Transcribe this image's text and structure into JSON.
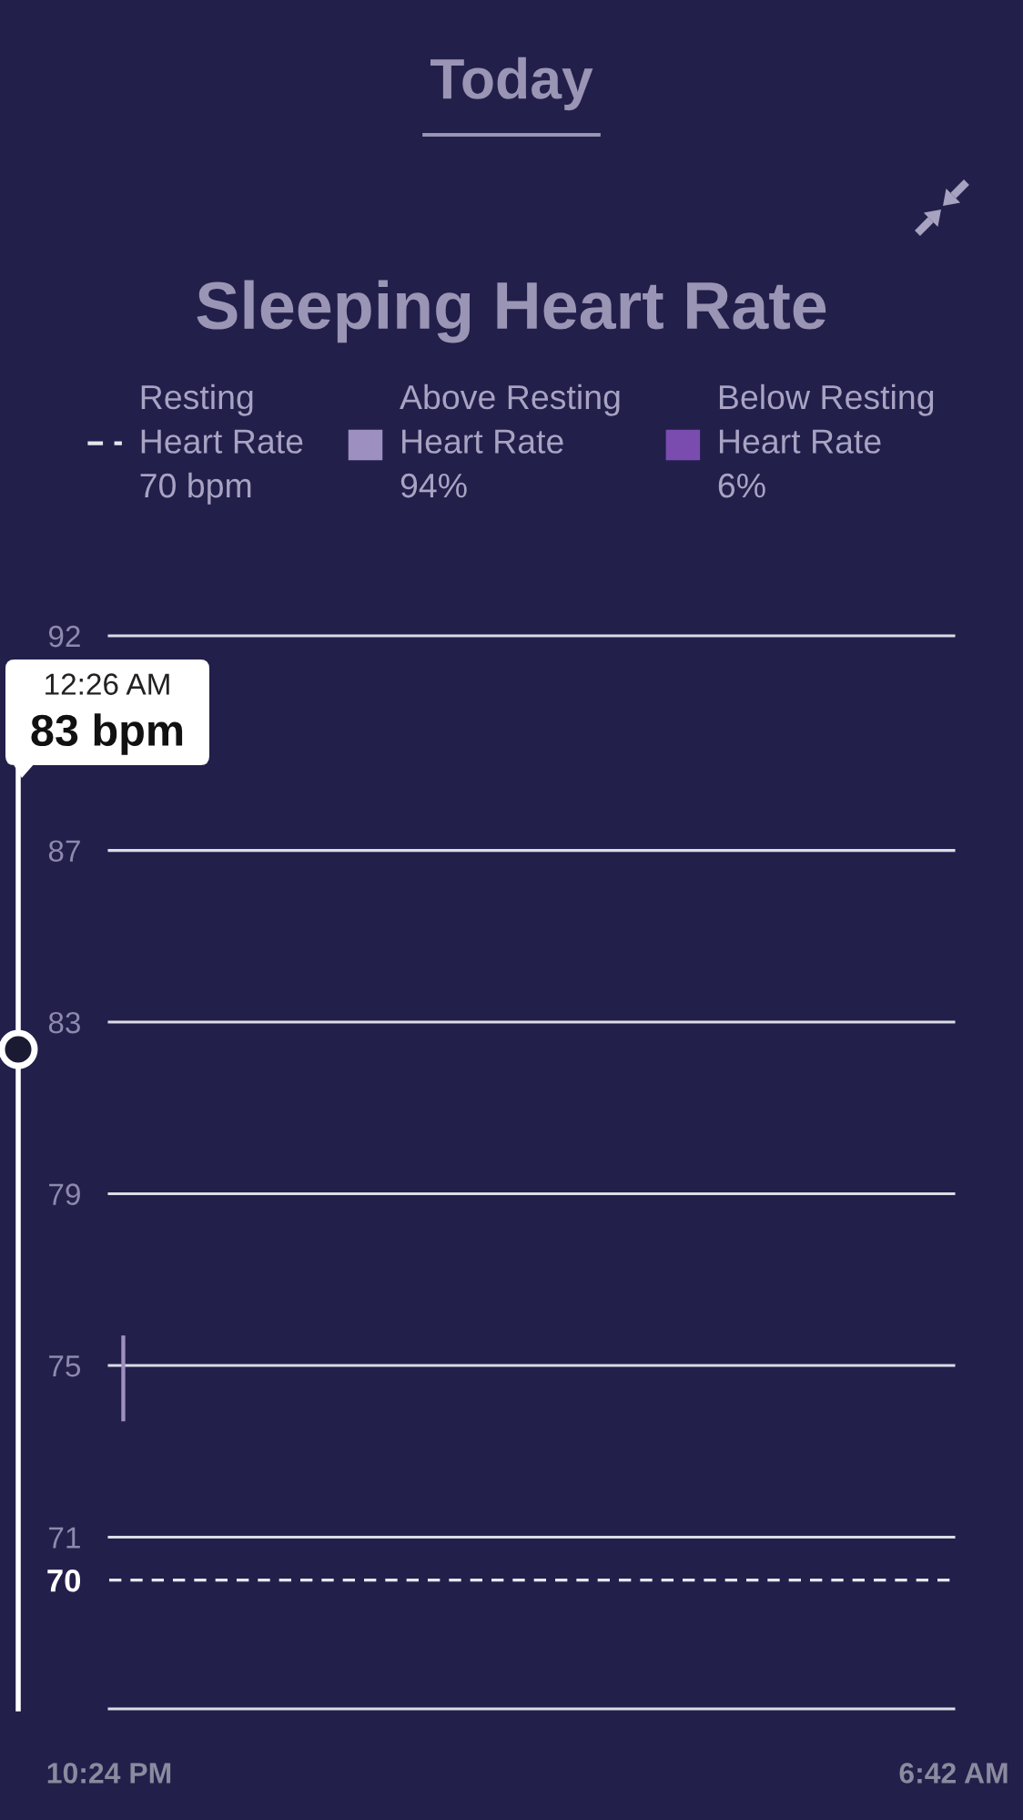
{
  "chart_data": {
    "type": "bar",
    "title": "Sleeping Heart Rate",
    "subtitle": "Today",
    "categories": [
      "10:24 PM",
      null,
      null,
      null,
      null,
      null,
      null,
      null,
      null,
      null,
      null,
      null,
      null,
      null,
      null,
      null,
      null,
      null,
      null,
      null,
      null,
      null,
      null,
      null,
      null,
      null,
      null,
      null,
      null,
      null,
      null,
      null,
      null,
      null,
      null,
      null,
      null,
      null,
      null,
      null,
      null,
      null,
      null,
      null,
      null,
      null,
      null,
      null,
      null,
      null,
      null,
      null,
      null,
      null,
      null,
      null,
      null,
      null,
      null,
      null,
      "6:42 AM"
    ],
    "series": [
      {
        "name": "Above Resting\nHeart Rate\n94%",
        "color": "#9d90c0",
        "values": [
          null,
          2.0,
          null,
          null,
          null,
          null,
          null,
          null,
          null,
          null,
          null,
          null,
          null,
          null,
          null,
          null,
          null,
          null,
          null,
          null,
          null,
          null,
          null,
          null,
          null,
          null,
          null,
          null,
          null,
          null,
          null,
          null,
          null,
          null,
          null,
          null,
          null,
          null,
          null,
          null,
          null,
          null,
          null,
          null,
          null,
          null,
          null,
          null,
          null,
          null,
          null,
          null,
          null,
          null,
          null,
          null,
          null,
          null,
          null,
          null,
          null
        ],
        "base": [
          null,
          73.7,
          null,
          null,
          null,
          null,
          null,
          null,
          null,
          null,
          null,
          null,
          null,
          null,
          null,
          null,
          null,
          null,
          null,
          null,
          null,
          null,
          null,
          null,
          null,
          null,
          null,
          null,
          null,
          null,
          null,
          null,
          null,
          null,
          null,
          null,
          null,
          null,
          null,
          null,
          null,
          null,
          null,
          null,
          null,
          null,
          null,
          null,
          null,
          null,
          null,
          null,
          null,
          null,
          null,
          null,
          null,
          null,
          null,
          null,
          null
        ]
      },
      {
        "name": "Below Resting\nHeart Rate\n6%",
        "color": "#7a4cb0",
        "values": [
          null,
          null,
          null,
          null,
          null,
          null,
          null,
          null,
          null,
          null,
          null,
          null,
          null,
          null,
          null,
          null,
          null,
          null,
          null,
          null,
          null,
          null,
          null,
          null,
          null,
          null,
          null,
          null,
          null,
          null,
          null,
          null,
          null,
          null,
          null,
          null,
          null,
          null,
          null,
          null,
          null,
          null,
          null,
          null,
          null,
          null,
          null,
          null,
          null,
          null,
          null,
          null,
          null,
          null,
          null,
          null,
          null,
          null,
          null,
          null,
          null
        ]
      }
    ],
    "ylim": [
      67,
      92
    ],
    "yticks": [
      70,
      71,
      75,
      79,
      83,
      87,
      92
    ],
    "ref_lines": [
      {
        "axis": "y",
        "value": 70,
        "label": "Resting\nHeart Rate\n70 bpm",
        "color": "#e6e6ee",
        "line_style": "dashed"
      }
    ],
    "annotations": [
      "12:26 AM\n83 bpm"
    ],
    "grid": "y",
    "legend": "top"
  }
}
